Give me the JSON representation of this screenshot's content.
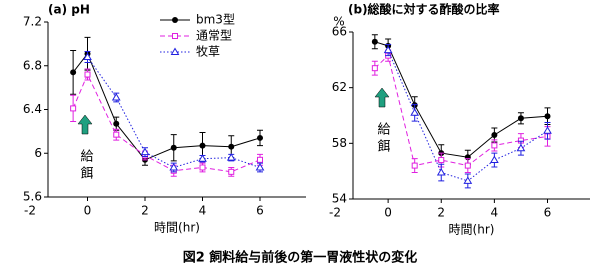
{
  "caption": "図2 飼料給与前後の第一胃液性状の変化",
  "chart_data": [
    {
      "type": "line",
      "title": "(a) pH",
      "x_label": "時間(hr)",
      "x": [
        -0.5,
        0,
        1,
        2,
        3,
        4,
        5,
        6
      ],
      "series": [
        {
          "name": "bm3型",
          "color": "#000000",
          "marker": "circle",
          "dash": "solid",
          "values": [
            6.74,
            6.91,
            6.27,
            5.94,
            6.05,
            6.07,
            6.06,
            6.14
          ],
          "errors": [
            0.2,
            0.15,
            0.06,
            0.05,
            0.12,
            0.12,
            0.1,
            0.07
          ]
        },
        {
          "name": "通常型",
          "color": "#e020e0",
          "marker": "square",
          "dash": "dashed",
          "values": [
            6.41,
            6.72,
            6.17,
            5.98,
            5.84,
            5.87,
            5.83,
            5.94
          ],
          "errors": [
            0.12,
            0.05,
            0.05,
            0.04,
            0.05,
            0.04,
            0.04,
            0.05
          ]
        },
        {
          "name": "牧草",
          "color": "#2020e0",
          "marker": "triangle",
          "dash": "dotted",
          "values": [
            null,
            6.88,
            6.51,
            6.01,
            5.87,
            5.95,
            5.96,
            5.87
          ],
          "errors": [
            null,
            0.05,
            0.04,
            0.04,
            0.04,
            0.03,
            0.03,
            0.04
          ]
        }
      ],
      "xlim": [
        -2,
        7.6
      ],
      "xticks": [
        -2,
        0,
        2,
        4,
        6
      ],
      "ylim": [
        5.6,
        7.2
      ],
      "yticks": [
        5.6,
        6,
        6.4,
        6.8,
        7.2
      ],
      "legend": true,
      "annotation": "給餌",
      "annotation_color": "#20a080"
    },
    {
      "type": "line",
      "title": "(b)総酸に対する酢酸の比率",
      "x_label": "時間(hr)",
      "y_label": "%",
      "x": [
        -0.5,
        0,
        1,
        2,
        3,
        4,
        5,
        6
      ],
      "series": [
        {
          "color": "#000000",
          "marker": "circle",
          "dash": "solid",
          "values": [
            65.3,
            65.0,
            60.75,
            57.3,
            57.0,
            58.6,
            59.8,
            59.95
          ],
          "errors": [
            0.5,
            0.5,
            0.6,
            0.6,
            0.5,
            0.5,
            0.4,
            0.6
          ]
        },
        {
          "color": "#e020e0",
          "marker": "square",
          "dash": "dashed",
          "values": [
            63.4,
            64.3,
            56.4,
            56.8,
            56.4,
            57.85,
            58.2,
            58.5
          ],
          "errors": [
            0.5,
            0.4,
            0.5,
            0.5,
            0.5,
            0.4,
            0.5,
            0.7
          ]
        },
        {
          "color": "#2020e0",
          "marker": "triangle",
          "dash": "dotted",
          "values": [
            null,
            64.7,
            60.2,
            55.9,
            55.3,
            56.8,
            57.65,
            58.9
          ],
          "errors": [
            null,
            0.4,
            0.6,
            0.6,
            0.5,
            0.5,
            0.5,
            0.6
          ]
        }
      ],
      "xlim": [
        -2,
        7.6
      ],
      "xticks": [
        -2,
        0,
        2,
        4,
        6
      ],
      "ylim": [
        54,
        66
      ],
      "yticks": [
        54,
        58,
        62,
        66
      ],
      "legend": false,
      "annotation": "給餌",
      "annotation_color": "#20a080"
    }
  ]
}
